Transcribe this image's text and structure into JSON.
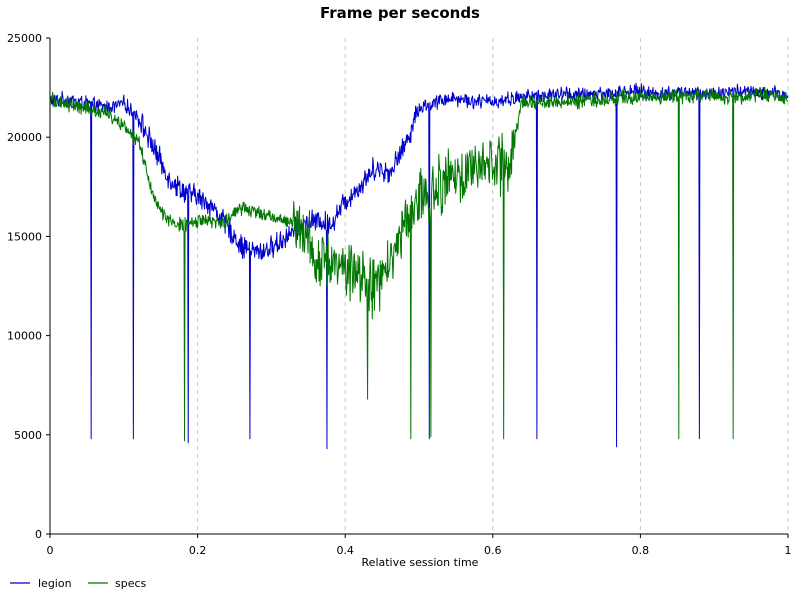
{
  "colors": {
    "legion": "#0000cc",
    "specs": "#007700",
    "grid": "#c8c8c8",
    "axis": "#000000"
  },
  "chart_data": {
    "type": "line",
    "title": "Frame per seconds",
    "xlabel": "Relative session time",
    "ylabel": "",
    "xlim": [
      0,
      1
    ],
    "ylim": [
      0,
      25000
    ],
    "grid": "vertical-dashed",
    "legend_position": "bottom-left",
    "x_ticks": [
      0,
      0.2,
      0.4,
      0.6,
      0.8,
      1
    ],
    "x_tick_labels": [
      "0",
      "0.2",
      "0.4",
      "0.6",
      "0.8",
      "1"
    ],
    "y_ticks": [
      0,
      5000,
      10000,
      15000,
      20000,
      25000
    ],
    "y_tick_labels": [
      "0",
      "5000",
      "10000",
      "15000",
      "20000",
      "25000"
    ],
    "series": [
      {
        "name": "legion",
        "color": "#0000cc",
        "x": [
          0,
          0.02,
          0.04,
          0.06,
          0.08,
          0.1,
          0.12,
          0.14,
          0.16,
          0.18,
          0.2,
          0.22,
          0.24,
          0.26,
          0.28,
          0.3,
          0.32,
          0.34,
          0.36,
          0.38,
          0.4,
          0.42,
          0.44,
          0.46,
          0.48,
          0.5,
          0.52,
          0.54,
          0.56,
          0.58,
          0.6,
          0.62,
          0.64,
          0.66,
          0.68,
          0.7,
          0.72,
          0.74,
          0.76,
          0.78,
          0.8,
          0.82,
          0.84,
          0.86,
          0.88,
          0.9,
          0.92,
          0.94,
          0.96,
          0.98,
          1
        ],
        "y": [
          21800,
          21900,
          21800,
          21600,
          21500,
          21700,
          21000,
          19500,
          18000,
          17300,
          17000,
          16500,
          15500,
          14500,
          14200,
          14400,
          15000,
          15500,
          15800,
          15600,
          16800,
          17500,
          18500,
          18200,
          19500,
          21500,
          21700,
          22000,
          21900,
          21800,
          21800,
          21900,
          22000,
          22100,
          22100,
          22200,
          22100,
          22200,
          22200,
          22300,
          22300,
          22200,
          22200,
          22300,
          22200,
          22200,
          22300,
          22300,
          22200,
          22200,
          22100
        ],
        "drops": [
          {
            "x": 0.056,
            "y": 4800
          },
          {
            "x": 0.113,
            "y": 4800
          },
          {
            "x": 0.187,
            "y": 4600
          },
          {
            "x": 0.271,
            "y": 4800
          },
          {
            "x": 0.375,
            "y": 4300
          },
          {
            "x": 0.514,
            "y": 4800
          },
          {
            "x": 0.66,
            "y": 4800
          },
          {
            "x": 0.768,
            "y": 4400
          },
          {
            "x": 0.88,
            "y": 4800
          }
        ]
      },
      {
        "name": "specs",
        "color": "#007700",
        "x": [
          0,
          0.02,
          0.04,
          0.06,
          0.08,
          0.1,
          0.12,
          0.14,
          0.16,
          0.18,
          0.2,
          0.22,
          0.24,
          0.26,
          0.28,
          0.3,
          0.32,
          0.34,
          0.36,
          0.38,
          0.4,
          0.42,
          0.44,
          0.46,
          0.48,
          0.5,
          0.52,
          0.54,
          0.56,
          0.58,
          0.6,
          0.62,
          0.64,
          0.66,
          0.68,
          0.7,
          0.72,
          0.74,
          0.76,
          0.78,
          0.8,
          0.82,
          0.84,
          0.86,
          0.88,
          0.9,
          0.92,
          0.94,
          0.96,
          0.98,
          1
        ],
        "y": [
          21900,
          21700,
          21500,
          21400,
          21200,
          20500,
          19800,
          17000,
          15800,
          15500,
          15800,
          15700,
          15800,
          16500,
          16200,
          16000,
          15800,
          15500,
          14000,
          13800,
          13500,
          13000,
          12500,
          13500,
          15500,
          17000,
          17500,
          17800,
          18000,
          18500,
          18800,
          18500,
          21800,
          21700,
          21700,
          21800,
          21800,
          21900,
          21900,
          22000,
          22000,
          22000,
          22100,
          22100,
          22100,
          22100,
          22000,
          22000,
          22100,
          22100,
          22000
        ],
        "drops": [
          {
            "x": 0.182,
            "y": 4700
          },
          {
            "x": 0.43,
            "y": 6800
          },
          {
            "x": 0.489,
            "y": 4800
          },
          {
            "x": 0.516,
            "y": 4900
          },
          {
            "x": 0.615,
            "y": 4800
          },
          {
            "x": 0.852,
            "y": 4800
          },
          {
            "x": 0.926,
            "y": 4800
          }
        ]
      }
    ]
  }
}
